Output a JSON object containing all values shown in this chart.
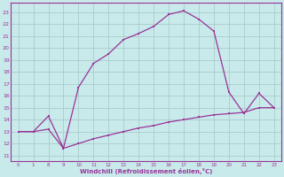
{
  "xlabel": "Windchill (Refroidissement éolien,°C)",
  "background_color": "#c8eaea",
  "line_color": "#993399",
  "grid_color": "#aacccc",
  "upper_x": [
    0,
    1,
    8,
    9,
    10,
    11,
    12,
    13,
    14,
    15,
    16,
    17,
    18,
    19,
    20,
    21,
    22,
    23
  ],
  "upper_y": [
    13.0,
    13.0,
    14.3,
    11.6,
    16.7,
    18.7,
    19.5,
    20.7,
    21.2,
    21.8,
    22.8,
    23.1,
    22.4,
    21.4,
    16.3,
    14.5,
    16.2,
    15.0
  ],
  "lower_x": [
    0,
    1,
    8,
    9,
    10,
    11,
    12,
    13,
    14,
    15,
    16,
    17,
    18,
    19,
    20,
    21,
    22,
    23
  ],
  "lower_y": [
    13.0,
    13.0,
    13.2,
    11.6,
    12.0,
    12.4,
    12.7,
    13.0,
    13.3,
    13.5,
    13.8,
    14.0,
    14.2,
    14.4,
    14.5,
    14.6,
    15.0,
    15.0
  ],
  "xtick_labels": [
    "0",
    "1",
    "8",
    "9",
    "10",
    "11",
    "12",
    "13",
    "14",
    "15",
    "16",
    "17",
    "18",
    "19",
    "20",
    "21",
    "22",
    "23"
  ],
  "ytick_labels": [
    "11",
    "12",
    "13",
    "14",
    "15",
    "16",
    "17",
    "18",
    "19",
    "20",
    "21",
    "22",
    "23"
  ],
  "ytick_vals": [
    11,
    12,
    13,
    14,
    15,
    16,
    17,
    18,
    19,
    20,
    21,
    22,
    23
  ],
  "ylim": [
    10.5,
    23.8
  ],
  "n_xticks": 18
}
